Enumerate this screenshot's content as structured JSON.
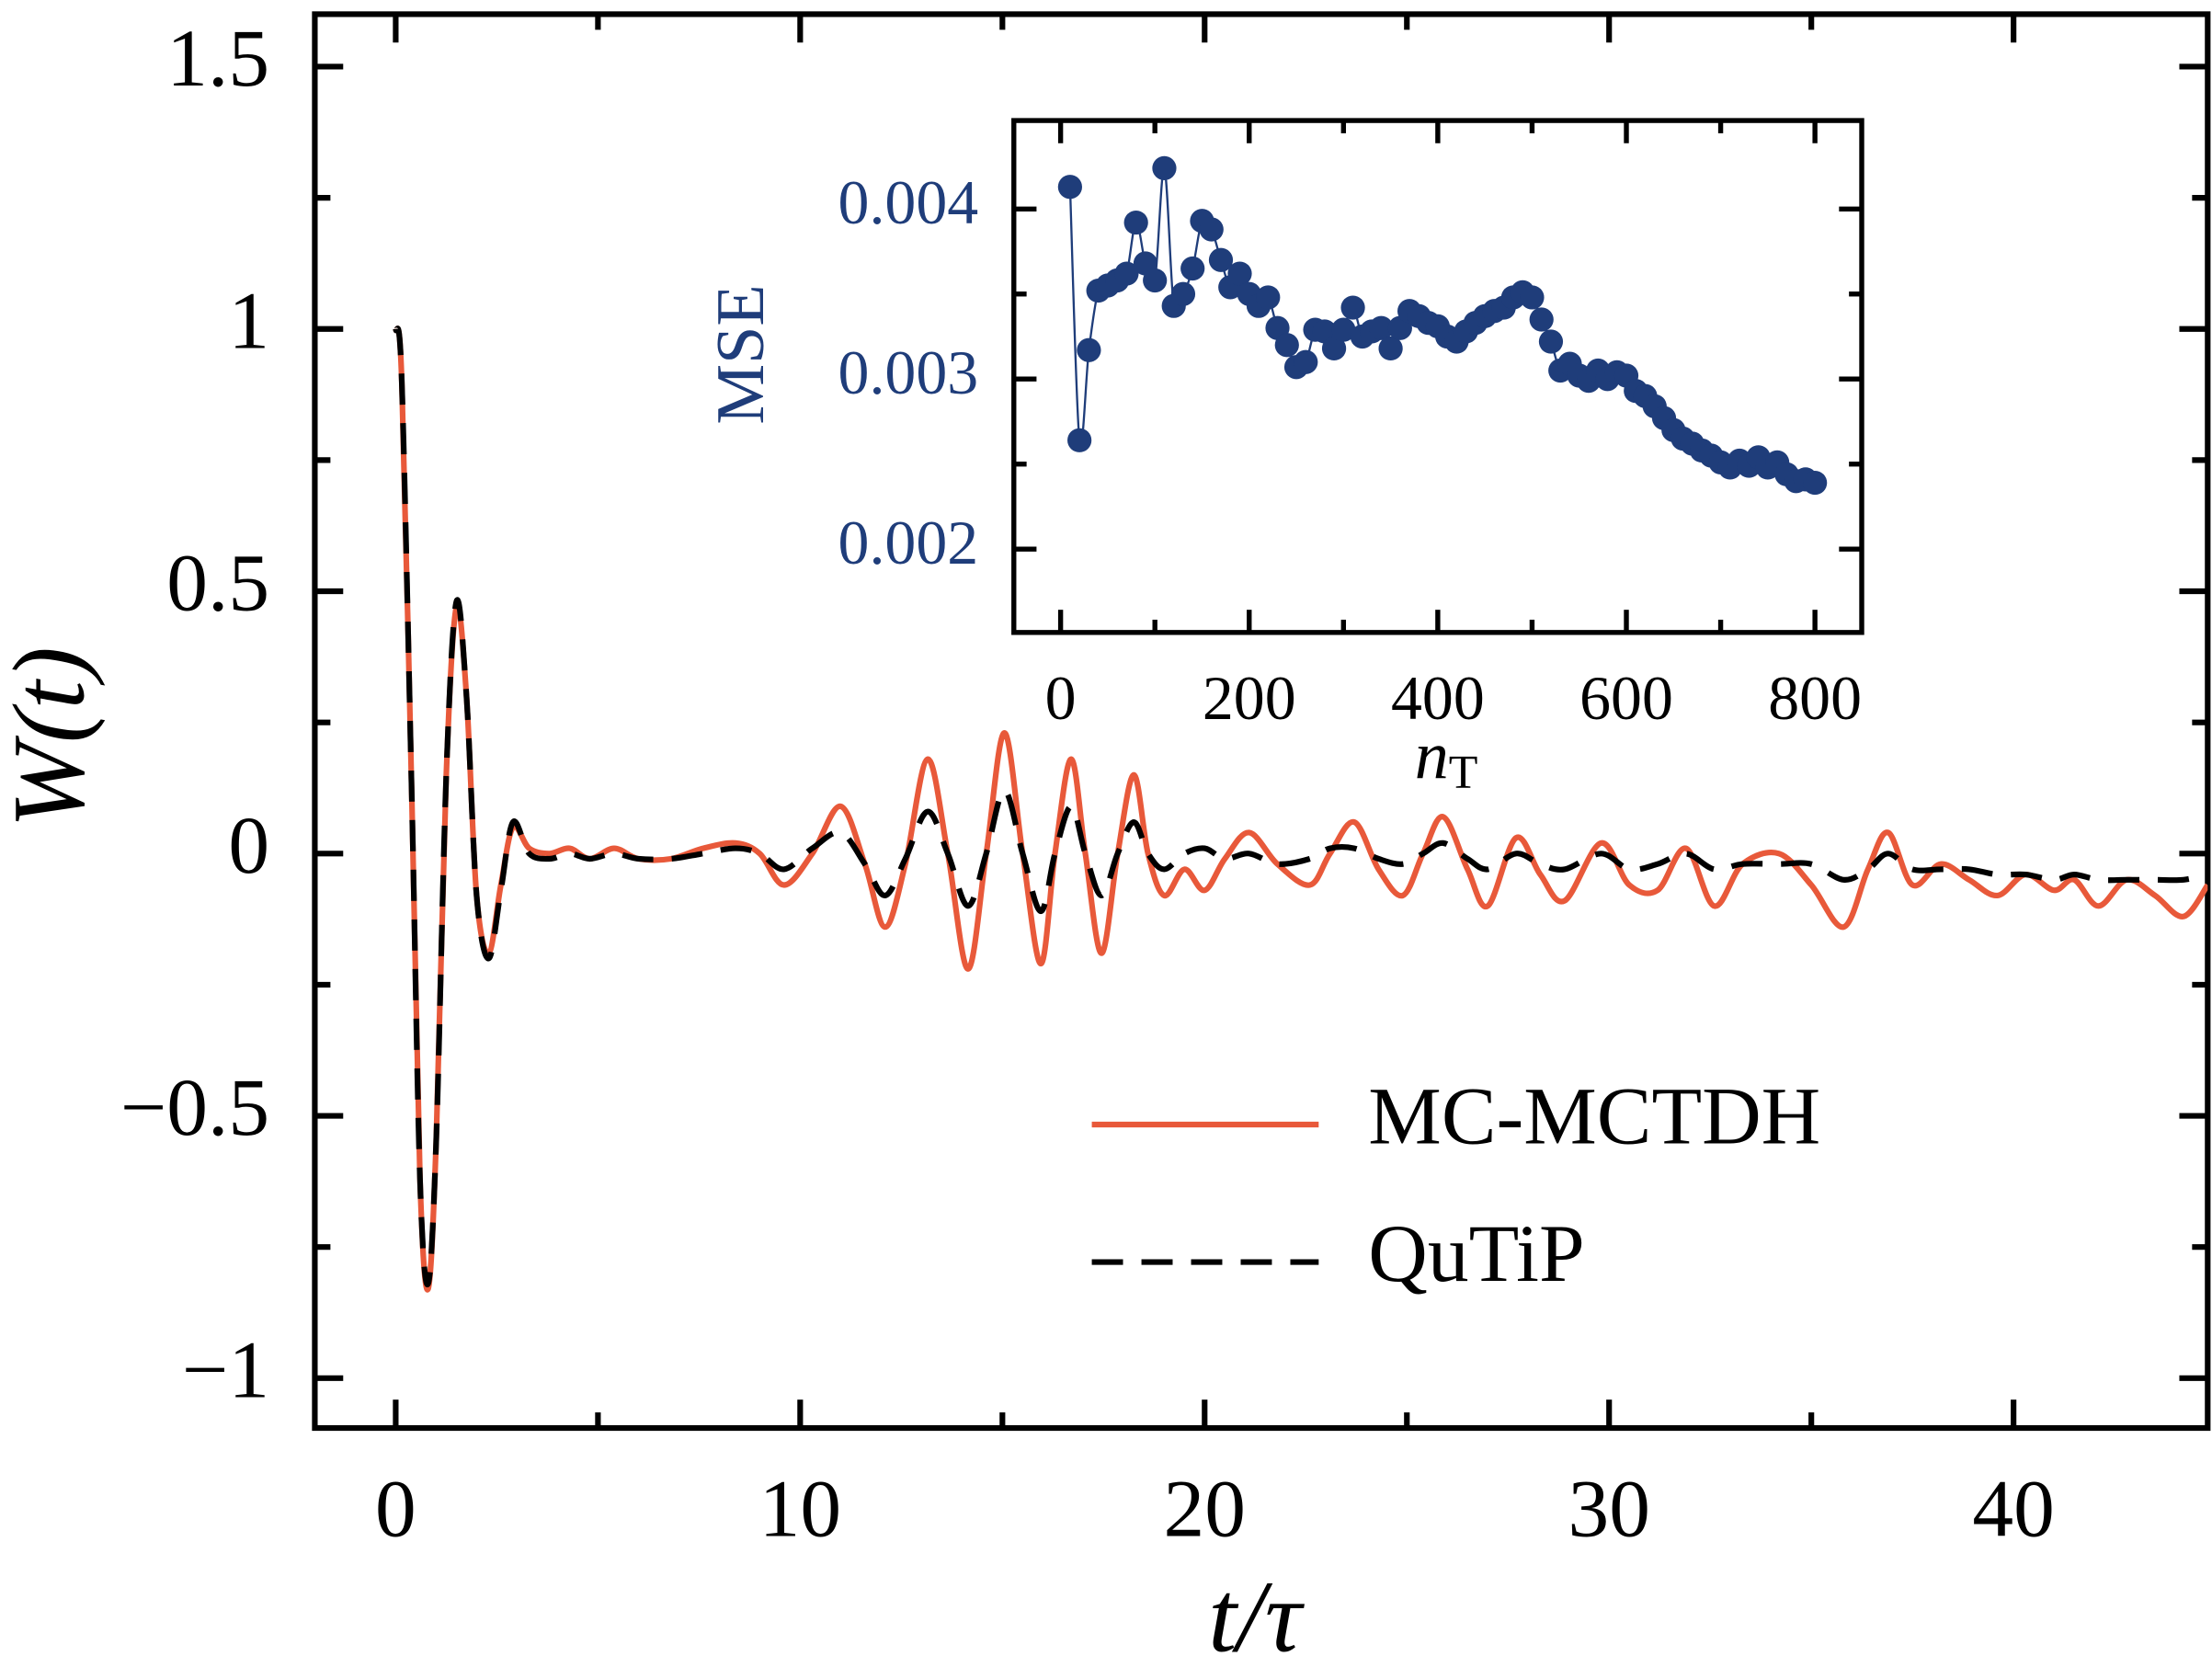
{
  "chart_data": [
    {
      "type": "line",
      "xlabel": "t/τ",
      "ylabel": "W(t)",
      "xlim": [
        -2,
        44.8
      ],
      "ylim": [
        -1.095,
        1.6
      ],
      "xticks": [
        0,
        10,
        20,
        30,
        40
      ],
      "xminor": [
        5,
        15,
        25,
        35
      ],
      "yticks": [
        {
          "value": -1,
          "label": "−1"
        },
        {
          "value": -0.5,
          "label": "−0.5"
        },
        0,
        0.5,
        1,
        1.5
      ],
      "yminor": [
        -0.75,
        -0.25,
        0.25,
        0.75,
        1.25
      ],
      "legend": "lower right",
      "x": [
        0,
        0.15,
        0.4,
        0.6,
        0.8,
        1.0,
        1.25,
        1.5,
        1.75,
        2.0,
        2.3,
        2.6,
        2.9,
        3.3,
        3.8,
        4.3,
        4.8,
        5.4,
        6.0,
        6.8,
        7.6,
        8.4,
        9.0,
        9.6,
        10.3,
        11.0,
        11.6,
        12.1,
        12.6,
        13.15,
        13.65,
        14.15,
        14.6,
        15.05,
        15.5,
        15.95,
        16.3,
        16.7,
        17.05,
        17.45,
        17.85,
        18.25,
        18.6,
        19.0,
        19.5,
        20.0,
        20.5,
        21.1,
        21.8,
        22.6,
        23.1,
        23.7,
        24.3,
        24.9,
        25.4,
        25.9,
        26.5,
        27.0,
        27.7,
        28.3,
        28.9,
        29.8,
        30.5,
        31.2,
        31.9,
        32.6,
        33.3,
        34.2,
        35.0,
        35.8,
        36.4,
        36.9,
        37.5,
        38.2,
        38.9,
        39.6,
        40.3,
        41.0,
        41.5,
        42.1,
        42.8,
        43.5,
        44.2,
        44.8
      ],
      "series": [
        {
          "name": "MC-MCTDH",
          "color": "#e8593a",
          "linestyle": "solid",
          "values": [
            1,
            0.9,
            0.1,
            -0.62,
            -0.83,
            -0.55,
            0.15,
            0.47,
            0.3,
            -0.08,
            -0.19,
            -0.06,
            0.05,
            0.01,
            0.0,
            0.01,
            -0.01,
            0.01,
            -0.01,
            -0.01,
            0.01,
            0.02,
            0.0,
            -0.06,
            0.0,
            0.09,
            -0.02,
            -0.14,
            -0.02,
            0.18,
            0.0,
            -0.22,
            0.0,
            0.23,
            0.0,
            -0.21,
            0.0,
            0.18,
            0.0,
            -0.19,
            0.0,
            0.15,
            0.0,
            -0.08,
            -0.03,
            -0.07,
            -0.01,
            0.04,
            -0.02,
            -0.06,
            0.0,
            0.06,
            -0.03,
            -0.08,
            0.0,
            0.07,
            -0.03,
            -0.1,
            0.03,
            -0.04,
            -0.09,
            0.02,
            -0.06,
            -0.07,
            0.01,
            -0.1,
            -0.02,
            0.0,
            -0.06,
            -0.14,
            -0.03,
            0.04,
            -0.06,
            -0.02,
            -0.05,
            -0.08,
            -0.04,
            -0.07,
            -0.05,
            -0.1,
            -0.05,
            -0.08,
            -0.12,
            -0.06
          ]
        },
        {
          "name": "QuTiP",
          "color": "#000000",
          "linestyle": "dashed",
          "values": [
            1,
            0.9,
            0.1,
            -0.62,
            -0.82,
            -0.55,
            0.15,
            0.48,
            0.3,
            -0.08,
            -0.2,
            -0.07,
            0.06,
            0.0,
            -0.01,
            0.0,
            -0.01,
            0.0,
            -0.01,
            -0.01,
            0.0,
            0.01,
            0.0,
            -0.03,
            0.01,
            0.04,
            -0.02,
            -0.08,
            -0.01,
            0.08,
            0.0,
            -0.1,
            0.0,
            0.12,
            0.0,
            -0.11,
            0.0,
            0.09,
            0.0,
            -0.08,
            0.0,
            0.06,
            0.0,
            -0.03,
            0.0,
            0.01,
            -0.01,
            0.0,
            -0.02,
            -0.01,
            0.01,
            0.01,
            -0.01,
            -0.02,
            0.0,
            0.02,
            -0.01,
            -0.03,
            0.0,
            -0.02,
            -0.03,
            0.0,
            -0.03,
            -0.02,
            0.0,
            -0.03,
            -0.02,
            -0.02,
            -0.02,
            -0.05,
            -0.03,
            0.0,
            -0.03,
            -0.03,
            -0.03,
            -0.04,
            -0.04,
            -0.05,
            -0.04,
            -0.05,
            -0.05,
            -0.05,
            -0.05,
            -0.04
          ]
        }
      ]
    },
    {
      "type": "line",
      "markers": true,
      "xlabel": "n",
      "xlabel_sub": "T",
      "ylabel": "MSE",
      "color": "#1f3d7a",
      "xlim": [
        -49.6,
        849.6
      ],
      "ylim": [
        0.00151,
        0.00452
      ],
      "xticks": [
        0,
        200,
        400,
        600,
        800
      ],
      "xminor": [
        100,
        300,
        500,
        700
      ],
      "yticks": [
        0.002,
        0.003,
        0.004
      ],
      "yminor": [
        0.0025,
        0.0035
      ],
      "x": [
        10,
        20,
        30,
        40,
        50,
        60,
        70,
        80,
        90,
        100,
        110,
        120,
        130,
        140,
        150,
        160,
        170,
        180,
        190,
        200,
        210,
        220,
        230,
        240,
        250,
        260,
        270,
        280,
        290,
        300,
        310,
        320,
        330,
        340,
        350,
        360,
        370,
        380,
        390,
        400,
        410,
        420,
        430,
        440,
        450,
        460,
        470,
        480,
        490,
        500,
        510,
        520,
        530,
        540,
        550,
        560,
        570,
        580,
        590,
        600,
        610,
        620,
        630,
        640,
        650,
        660,
        670,
        680,
        690,
        700,
        710,
        720,
        730,
        740,
        750,
        760,
        770,
        780,
        790,
        800
      ],
      "values": [
        0.00413,
        0.00264,
        0.00317,
        0.00352,
        0.00355,
        0.00358,
        0.00362,
        0.00392,
        0.00368,
        0.00358,
        0.00424,
        0.00343,
        0.0035,
        0.00365,
        0.00393,
        0.00388,
        0.0037,
        0.00354,
        0.00362,
        0.0035,
        0.00343,
        0.00348,
        0.0033,
        0.0032,
        0.00307,
        0.0031,
        0.00329,
        0.00328,
        0.00318,
        0.00329,
        0.00342,
        0.00325,
        0.00328,
        0.0033,
        0.00318,
        0.0033,
        0.0034,
        0.00337,
        0.00333,
        0.00331,
        0.00325,
        0.00322,
        0.00328,
        0.00333,
        0.00337,
        0.0034,
        0.00342,
        0.00348,
        0.00351,
        0.00348,
        0.00335,
        0.00322,
        0.00305,
        0.00309,
        0.00302,
        0.00299,
        0.00305,
        0.003,
        0.00304,
        0.00302,
        0.00293,
        0.0029,
        0.00284,
        0.00277,
        0.0027,
        0.00265,
        0.00262,
        0.00258,
        0.00255,
        0.00251,
        0.00248,
        0.00252,
        0.00249,
        0.00254,
        0.00248,
        0.00251,
        0.00244,
        0.0024,
        0.00241,
        0.00239
      ]
    }
  ]
}
